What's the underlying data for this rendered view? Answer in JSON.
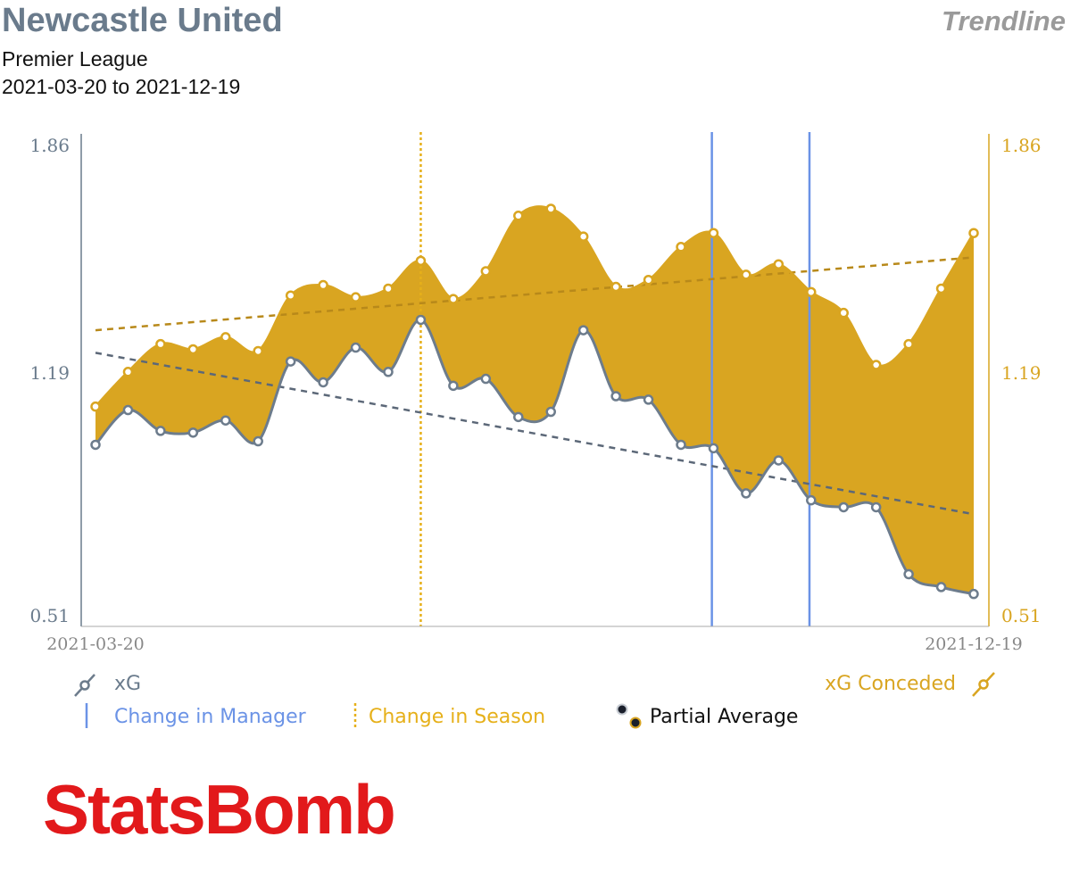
{
  "header": {
    "title": "Newcastle United",
    "subtitle": "Premier League",
    "date_range": "2021-03-20 to 2021-12-19",
    "chart_kind": "Trendline"
  },
  "legend": {
    "xg": "xG",
    "xg_conceded": "xG Conceded",
    "change_manager": "Change in Manager",
    "change_season": "Change in Season",
    "partial_average": "Partial Average"
  },
  "logo_text": "StatsBomb",
  "chart_data": {
    "type": "line",
    "title": "Newcastle United",
    "x_labels": [
      "2021-03-20",
      "2021-12-19"
    ],
    "ylim": [
      0.51,
      1.86
    ],
    "yticks": [
      0.51,
      1.19,
      1.86
    ],
    "ytick_labels": [
      "0.51",
      "1.19",
      "1.86"
    ],
    "series": [
      {
        "name": "xG",
        "color": "#6d7c8c",
        "values": [
          1.0,
          1.1,
          1.04,
          1.035,
          1.07,
          1.01,
          1.24,
          1.18,
          1.28,
          1.21,
          1.36,
          1.17,
          1.19,
          1.08,
          1.095,
          1.33,
          1.14,
          1.13,
          1.0,
          0.99,
          0.86,
          0.955,
          0.84,
          0.82,
          0.82,
          0.627,
          0.59,
          0.57
        ]
      },
      {
        "name": "xG Conceded",
        "color": "#d9a521",
        "values": [
          1.11,
          1.21,
          1.29,
          1.275,
          1.31,
          1.27,
          1.43,
          1.46,
          1.425,
          1.45,
          1.53,
          1.42,
          1.5,
          1.66,
          1.68,
          1.6,
          1.455,
          1.475,
          1.57,
          1.61,
          1.49,
          1.52,
          1.44,
          1.38,
          1.23,
          1.29,
          1.45,
          1.61
        ]
      }
    ],
    "trendlines": [
      {
        "series": "xG",
        "start": 1.265,
        "end": 0.8
      },
      {
        "series": "xG Conceded",
        "start": 1.33,
        "end": 1.54
      }
    ],
    "season_change_index": 10,
    "manager_change_indices": [
      18.95,
      21.95
    ]
  }
}
